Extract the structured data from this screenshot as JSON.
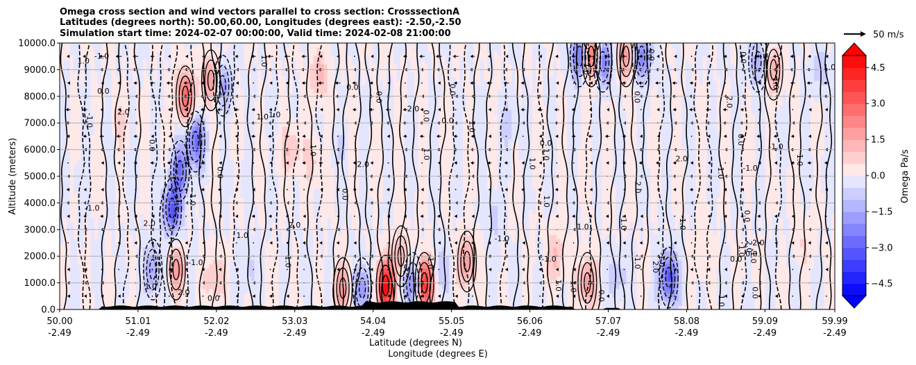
{
  "chart_data": {
    "type": "heatmap",
    "title_lines": [
      "Omega cross section and wind vectors parallel to cross section: CrosssectionA",
      "Latitudes (degrees north): 50.00,60.00, Longitudes (degrees east): -2.50,-2.50",
      "Simulation start time: 2024-02-07 00:00:00, Valid time: 2024-02-08 21:00:00"
    ],
    "ylabel": "Altitude (meters)",
    "xlabel_lines": [
      "Latitude (degrees N)",
      "Longitude (degrees E)"
    ],
    "ylim": [
      0,
      10000
    ],
    "xlim": [
      50.0,
      59.99
    ],
    "y_ticks": [
      {
        "value": 0,
        "label": "0.0"
      },
      {
        "value": 1000,
        "label": "1000.0"
      },
      {
        "value": 2000,
        "label": "2000.0"
      },
      {
        "value": 3000,
        "label": "3000.0"
      },
      {
        "value": 4000,
        "label": "4000.0"
      },
      {
        "value": 5000,
        "label": "5000.0"
      },
      {
        "value": 6000,
        "label": "6000.0"
      },
      {
        "value": 7000,
        "label": "7000.0"
      },
      {
        "value": 8000,
        "label": "8000.0"
      },
      {
        "value": 9000,
        "label": "9000.0"
      },
      {
        "value": 10000,
        "label": "10000.0"
      }
    ],
    "x_ticks": [
      {
        "value": 50.0,
        "lat": "50.00",
        "lon": "-2.49"
      },
      {
        "value": 51.01,
        "lat": "51.01",
        "lon": "-2.49"
      },
      {
        "value": 52.02,
        "lat": "52.02",
        "lon": "-2.49"
      },
      {
        "value": 53.03,
        "lat": "53.03",
        "lon": "-2.49"
      },
      {
        "value": 54.04,
        "lat": "54.04",
        "lon": "-2.49"
      },
      {
        "value": 55.05,
        "lat": "55.05",
        "lon": "-2.49"
      },
      {
        "value": 56.06,
        "lat": "56.06",
        "lon": "-2.49"
      },
      {
        "value": 57.07,
        "lat": "57.07",
        "lon": "-2.49"
      },
      {
        "value": 58.08,
        "lat": "58.08",
        "lon": "-2.49"
      },
      {
        "value": 59.09,
        "lat": "59.09",
        "lon": "-2.49"
      },
      {
        "value": 59.99,
        "lat": "59.99",
        "lon": "-2.49"
      }
    ],
    "grid": "horizontal",
    "colorbar": {
      "label": "Omega Pa/s",
      "range": [
        -5.0,
        5.0
      ],
      "ticks": [
        {
          "value": 4.5,
          "label": "4.5"
        },
        {
          "value": 3.0,
          "label": "3.0"
        },
        {
          "value": 1.5,
          "label": "1.5"
        },
        {
          "value": 0.0,
          "label": "0.0"
        },
        {
          "value": -1.5,
          "label": "−1.5"
        },
        {
          "value": -3.0,
          "label": "−3.0"
        },
        {
          "value": -4.5,
          "label": "−4.5"
        }
      ],
      "extend": "both",
      "max_color": "#ff0000",
      "min_color": "#0000ff",
      "mid_color": "#ffffff"
    },
    "vector_key": {
      "label": "50 m/s"
    },
    "contour_labels": [
      "1.0",
      "0.0",
      "-1.0",
      "2.0"
    ],
    "omega_features": [
      {
        "lat": 50.2,
        "alt": 5000,
        "omega": -0.3
      },
      {
        "lat": 50.8,
        "alt": 7000,
        "omega": 0.6
      },
      {
        "lat": 51.45,
        "alt": 3800,
        "omega": -3.5
      },
      {
        "lat": 51.55,
        "alt": 5200,
        "omega": -2.5
      },
      {
        "lat": 51.62,
        "alt": 8000,
        "omega": 3.2
      },
      {
        "lat": 51.75,
        "alt": 6300,
        "omega": -3.0
      },
      {
        "lat": 51.95,
        "alt": 8600,
        "omega": 2.0
      },
      {
        "lat": 52.1,
        "alt": 8400,
        "omega": -1.8
      },
      {
        "lat": 51.2,
        "alt": 1500,
        "omega": -1.8
      },
      {
        "lat": 51.5,
        "alt": 1500,
        "omega": 1.8
      },
      {
        "lat": 52.0,
        "alt": 1200,
        "omega": 1.2
      },
      {
        "lat": 52.45,
        "alt": 1500,
        "omega": -0.8
      },
      {
        "lat": 53.0,
        "alt": 6000,
        "omega": 1.2
      },
      {
        "lat": 53.3,
        "alt": 5500,
        "omega": 0.8
      },
      {
        "lat": 53.35,
        "alt": 8800,
        "omega": 1.3
      },
      {
        "lat": 53.55,
        "alt": 6000,
        "omega": -0.5
      },
      {
        "lat": 53.65,
        "alt": 800,
        "omega": 1.8
      },
      {
        "lat": 53.9,
        "alt": 800,
        "omega": -2.2
      },
      {
        "lat": 54.2,
        "alt": 900,
        "omega": 5.0
      },
      {
        "lat": 54.4,
        "alt": 2000,
        "omega": 1.5
      },
      {
        "lat": 54.55,
        "alt": 1000,
        "omega": -3.2
      },
      {
        "lat": 54.7,
        "alt": 1000,
        "omega": 5.0
      },
      {
        "lat": 54.9,
        "alt": 1500,
        "omega": -1.0
      },
      {
        "lat": 55.25,
        "alt": 1800,
        "omega": 2.0
      },
      {
        "lat": 55.6,
        "alt": 3500,
        "omega": -0.8
      },
      {
        "lat": 55.8,
        "alt": 7000,
        "omega": -0.8
      },
      {
        "lat": 56.4,
        "alt": 2000,
        "omega": 1.2
      },
      {
        "lat": 56.7,
        "alt": 9500,
        "omega": -3.0
      },
      {
        "lat": 56.85,
        "alt": 9500,
        "omega": 3.5
      },
      {
        "lat": 57.0,
        "alt": 9300,
        "omega": -2.8
      },
      {
        "lat": 57.3,
        "alt": 9500,
        "omega": 2.0
      },
      {
        "lat": 57.5,
        "alt": 9500,
        "omega": -2.5
      },
      {
        "lat": 56.8,
        "alt": 1000,
        "omega": 2.0
      },
      {
        "lat": 57.2,
        "alt": 1200,
        "omega": -1.0
      },
      {
        "lat": 57.85,
        "alt": 1200,
        "omega": -3.5
      },
      {
        "lat": 58.3,
        "alt": 2000,
        "omega": 0.6
      },
      {
        "lat": 59.0,
        "alt": 9300,
        "omega": -1.5
      },
      {
        "lat": 59.2,
        "alt": 9000,
        "omega": 1.5
      },
      {
        "lat": 59.6,
        "alt": 2500,
        "omega": 0.5
      },
      {
        "lat": 59.8,
        "alt": 9000,
        "omega": -0.8
      }
    ]
  }
}
